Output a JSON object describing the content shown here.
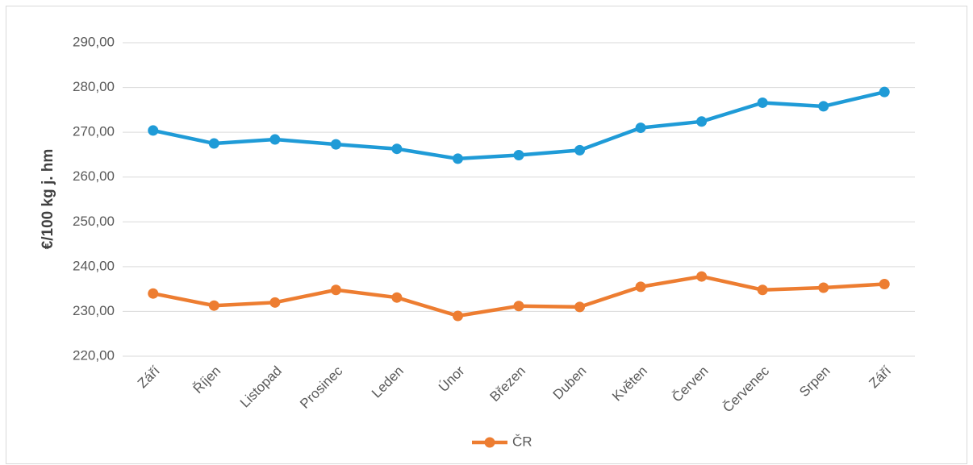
{
  "chart_data": {
    "type": "line",
    "y_label": "€/100 kg j. hm",
    "categories": [
      "Září",
      "Říjen",
      "Listopad",
      "Prosinec",
      "Leden",
      "Únor",
      "Březen",
      "Duben",
      "Květen",
      "Červen",
      "Červenec",
      "Srpen",
      "Září"
    ],
    "series": [
      {
        "color": "#1f9bd7",
        "values": [
          270.4,
          267.5,
          268.4,
          267.3,
          266.3,
          264.1,
          264.9,
          266.0,
          271.0,
          272.4,
          276.6,
          275.8,
          279.0
        ]
      },
      {
        "name": "ČR",
        "color": "#ed7d31",
        "values": [
          234.0,
          231.3,
          232.0,
          234.8,
          233.1,
          229.0,
          231.2,
          231.0,
          235.5,
          237.8,
          234.8,
          235.3,
          236.1
        ]
      }
    ],
    "ylim": [
      220,
      290
    ],
    "yticks": [
      {
        "value": 220,
        "label": "220,00"
      },
      {
        "value": 230,
        "label": "230,00"
      },
      {
        "value": 240,
        "label": "240,00"
      },
      {
        "value": 250,
        "label": "250,00"
      },
      {
        "value": 260,
        "label": "260,00"
      },
      {
        "value": 270,
        "label": "270,00"
      },
      {
        "value": 280,
        "label": "280,00"
      },
      {
        "value": 290,
        "label": "290,00"
      }
    ],
    "grid": true,
    "legend": "bottom"
  }
}
